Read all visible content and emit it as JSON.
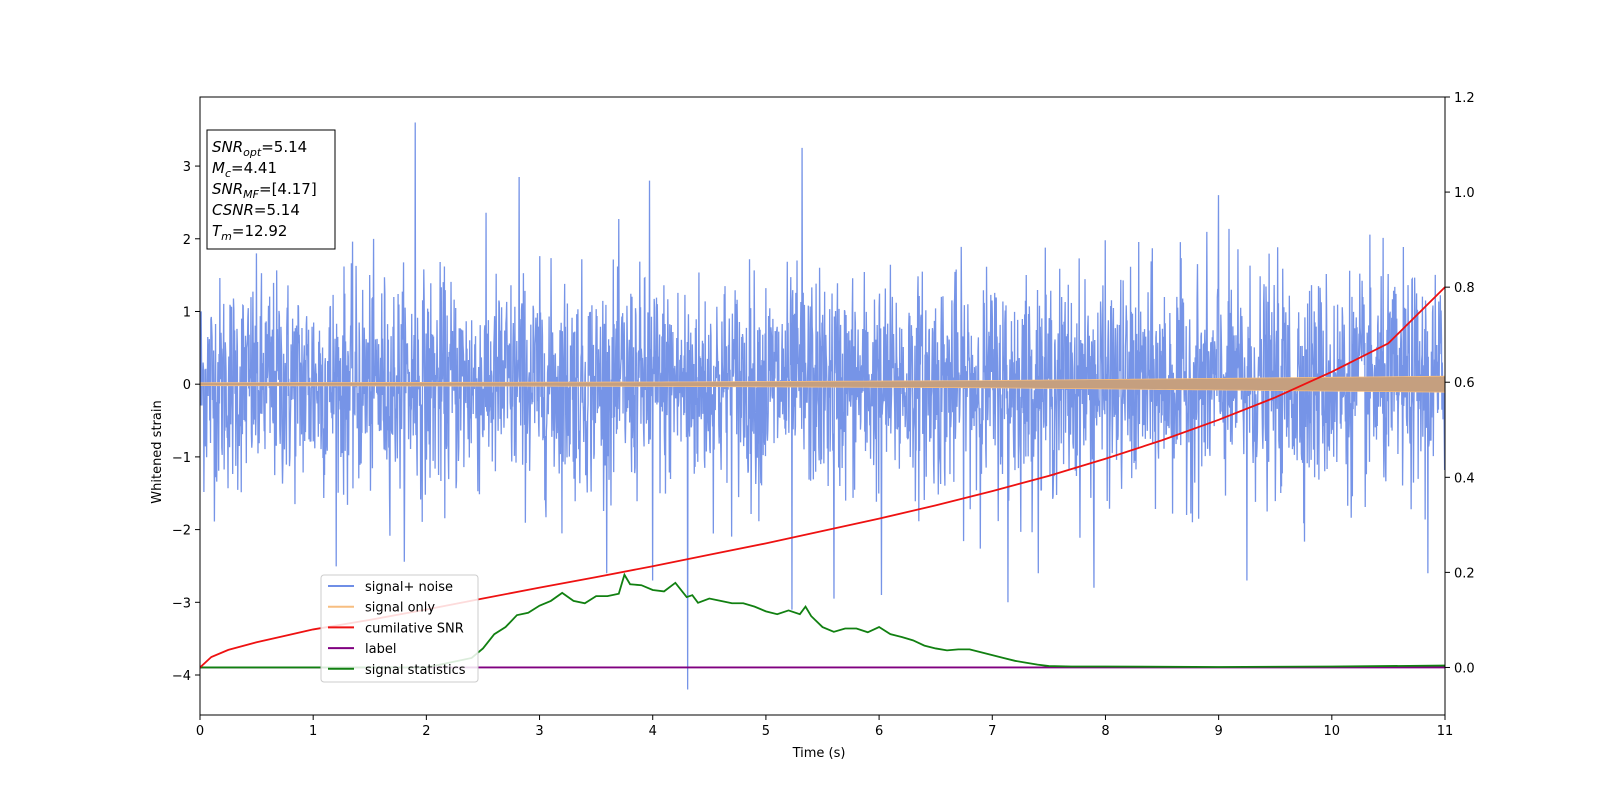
{
  "chart_data": {
    "type": "line",
    "xlabel": "Time (s)",
    "ylabel": "Whitened strain",
    "xlim": [
      0,
      11
    ],
    "ylim": [
      -4.55,
      3.95
    ],
    "y2lim": [
      -0.1,
      1.2
    ],
    "xticks": [
      "0",
      "1",
      "2",
      "3",
      "4",
      "5",
      "6",
      "7",
      "8",
      "9",
      "10",
      "11"
    ],
    "yticks": [
      "3",
      "2",
      "1",
      "0",
      "−1",
      "−2",
      "−3",
      "−4"
    ],
    "y2ticks": [
      "0.0",
      "0.2",
      "0.4",
      "0.6",
      "0.8",
      "1.0",
      "1.2"
    ],
    "grid": false,
    "legend_position": "lower-left",
    "colors": {
      "signal_noise": "#6f8ee6",
      "signal_only": "#f7be80",
      "signal_only_band": "#c59f7f",
      "cumulative_snr": "#ee1111",
      "label": "#800080",
      "signal_statistics": "#118011"
    },
    "series": [
      {
        "name": "signal+ noise",
        "axis": "left",
        "description_stats": {
          "mean": 0,
          "typical_range": [
            -1.5,
            1.5
          ]
        },
        "spikes": [
          {
            "x": 1.9,
            "y": 3.6
          },
          {
            "x": 2.82,
            "y": 2.85
          },
          {
            "x": 3.97,
            "y": 2.8
          },
          {
            "x": 5.32,
            "y": 3.25
          },
          {
            "x": 9.0,
            "y": 2.6
          },
          {
            "x": 4.31,
            "y": -4.2
          },
          {
            "x": 5.23,
            "y": -3.1
          },
          {
            "x": 5.6,
            "y": -2.95
          },
          {
            "x": 6.02,
            "y": -2.9
          },
          {
            "x": 7.14,
            "y": -3.0
          },
          {
            "x": 7.9,
            "y": -2.8
          },
          {
            "x": 9.25,
            "y": -2.7
          },
          {
            "x": 10.85,
            "y": -2.6
          },
          {
            "x": 4.0,
            "y": -2.7
          }
        ]
      },
      {
        "name": "signal only",
        "axis": "left",
        "amplitude": [
          {
            "x": 0,
            "y": 0.02
          },
          {
            "x": 4,
            "y": 0.03
          },
          {
            "x": 7,
            "y": 0.05
          },
          {
            "x": 9,
            "y": 0.08
          },
          {
            "x": 11,
            "y": 0.11
          }
        ]
      },
      {
        "name": "cumilative SNR",
        "axis": "right",
        "x": [
          0,
          0.1,
          0.25,
          0.5,
          1,
          1.5,
          2,
          2.5,
          3,
          3.5,
          4,
          4.5,
          5,
          5.5,
          6,
          6.5,
          7,
          7.5,
          8,
          8.5,
          9,
          9.5,
          10,
          10.5,
          11
        ],
        "values": [
          0.0,
          0.022,
          0.037,
          0.053,
          0.08,
          0.1,
          0.122,
          0.145,
          0.168,
          0.19,
          0.213,
          0.237,
          0.261,
          0.287,
          0.313,
          0.341,
          0.371,
          0.403,
          0.439,
          0.478,
          0.521,
          0.568,
          0.622,
          0.682,
          0.8
        ]
      },
      {
        "name": "label",
        "axis": "right",
        "x": [
          0,
          11
        ],
        "values": [
          0.0,
          0.0
        ]
      },
      {
        "name": "signal statistics",
        "axis": "right",
        "x": [
          0,
          1,
          2,
          2.2,
          2.4,
          2.5,
          2.6,
          2.7,
          2.8,
          2.9,
          3.0,
          3.1,
          3.2,
          3.3,
          3.4,
          3.5,
          3.6,
          3.7,
          3.75,
          3.8,
          3.9,
          4.0,
          4.1,
          4.2,
          4.3,
          4.35,
          4.4,
          4.5,
          4.6,
          4.7,
          4.8,
          4.9,
          5.0,
          5.1,
          5.2,
          5.3,
          5.35,
          5.4,
          5.5,
          5.6,
          5.7,
          5.8,
          5.9,
          6.0,
          6.1,
          6.2,
          6.3,
          6.4,
          6.5,
          6.6,
          6.7,
          6.8,
          6.9,
          7.0,
          7.1,
          7.2,
          7.3,
          7.4,
          7.5,
          7.7,
          8,
          9,
          10,
          11
        ],
        "values": [
          0.0,
          0.0,
          0.0,
          0.01,
          0.02,
          0.04,
          0.07,
          0.085,
          0.11,
          0.115,
          0.13,
          0.14,
          0.157,
          0.14,
          0.135,
          0.15,
          0.15,
          0.155,
          0.195,
          0.175,
          0.173,
          0.163,
          0.16,
          0.178,
          0.148,
          0.152,
          0.136,
          0.145,
          0.14,
          0.135,
          0.135,
          0.128,
          0.118,
          0.112,
          0.12,
          0.112,
          0.128,
          0.108,
          0.085,
          0.075,
          0.082,
          0.082,
          0.074,
          0.085,
          0.07,
          0.064,
          0.057,
          0.046,
          0.04,
          0.036,
          0.038,
          0.038,
          0.032,
          0.026,
          0.02,
          0.014,
          0.01,
          0.006,
          0.003,
          0.002,
          0.002,
          0.001,
          0.002,
          0.004
        ]
      }
    ],
    "annotation_box": {
      "lines": [
        {
          "var": "SNR",
          "sub": "opt",
          "rest": "=5.14"
        },
        {
          "var": "M",
          "sub": "c",
          "rest": "=4.41"
        },
        {
          "var": "SNR",
          "sub": "MF",
          "rest": "=[4.17]"
        },
        {
          "var": "CSNR",
          "sub": "",
          "rest": "=5.14"
        },
        {
          "var": "T",
          "sub": "m",
          "rest": "=12.92"
        }
      ]
    }
  }
}
